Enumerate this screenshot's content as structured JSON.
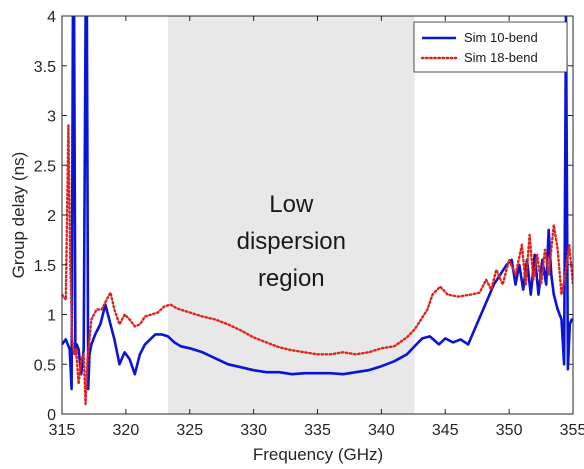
{
  "chart_data": {
    "type": "line",
    "xlabel": "Frequency (GHz)",
    "ylabel": "Group delay (ns)",
    "xlim": [
      315,
      355
    ],
    "ylim": [
      0,
      4
    ],
    "x_ticks": [
      315,
      320,
      325,
      330,
      335,
      340,
      345,
      350,
      355
    ],
    "y_ticks": [
      0,
      0.5,
      1,
      1.5,
      2,
      2.5,
      3,
      3.5,
      4
    ],
    "grid": false,
    "legend_position": "top-right",
    "shaded_region": {
      "x_range": [
        323.3,
        342.6
      ],
      "color": "#e8e8e8",
      "label_lines": [
        "Low",
        "dispersion",
        "region"
      ]
    },
    "series": [
      {
        "name": "Sim 10-bend",
        "color": "#0a14d6",
        "style": "solid",
        "x": [
          315.0,
          315.3,
          315.6,
          315.75,
          315.85,
          315.95,
          316.05,
          316.15,
          316.3,
          316.5,
          316.7,
          316.85,
          316.95,
          317.05,
          317.15,
          317.3,
          317.6,
          318.0,
          318.4,
          318.8,
          319.1,
          319.5,
          319.9,
          320.3,
          320.7,
          321.1,
          321.5,
          321.9,
          322.3,
          322.8,
          323.3,
          323.8,
          324.3,
          325.0,
          326.0,
          327.0,
          328.0,
          329.0,
          330.0,
          331.0,
          332.0,
          333.0,
          334.0,
          335.0,
          336.0,
          337.0,
          338.0,
          339.0,
          340.0,
          341.0,
          342.0,
          342.6,
          343.2,
          343.8,
          344.5,
          345.0,
          345.6,
          346.2,
          346.8,
          347.3,
          347.8,
          348.3,
          348.8,
          349.3,
          349.8,
          350.2,
          350.5,
          350.8,
          351.1,
          351.4,
          351.7,
          352.0,
          352.3,
          352.6,
          352.9,
          353.1,
          353.3,
          353.5,
          353.8,
          354.1,
          354.3,
          354.45,
          354.6,
          354.75,
          354.9,
          355.0
        ],
        "values": [
          0.7,
          0.75,
          0.65,
          0.25,
          4.0,
          4.0,
          0.6,
          0.7,
          0.65,
          0.4,
          0.65,
          4.0,
          4.0,
          0.25,
          0.6,
          0.7,
          0.8,
          0.9,
          1.1,
          0.9,
          0.75,
          0.5,
          0.62,
          0.55,
          0.4,
          0.6,
          0.7,
          0.75,
          0.8,
          0.8,
          0.78,
          0.72,
          0.68,
          0.66,
          0.62,
          0.56,
          0.5,
          0.47,
          0.44,
          0.42,
          0.42,
          0.4,
          0.41,
          0.41,
          0.41,
          0.4,
          0.42,
          0.44,
          0.48,
          0.53,
          0.6,
          0.68,
          0.76,
          0.78,
          0.7,
          0.76,
          0.72,
          0.75,
          0.7,
          0.85,
          1.0,
          1.15,
          1.3,
          1.4,
          1.5,
          1.55,
          1.3,
          1.5,
          1.25,
          1.55,
          1.2,
          1.6,
          1.2,
          1.55,
          1.3,
          1.85,
          1.4,
          1.2,
          1.05,
          0.95,
          0.5,
          4.0,
          0.45,
          0.9,
          0.95,
          0.95
        ]
      },
      {
        "name": "Sim 18-bend",
        "color": "#e0241b",
        "style": "dotted",
        "x": [
          315.0,
          315.3,
          315.5,
          315.65,
          315.8,
          315.95,
          316.1,
          316.3,
          316.5,
          316.7,
          316.85,
          317.0,
          317.3,
          317.7,
          318.1,
          318.5,
          318.8,
          319.1,
          319.5,
          319.9,
          320.3,
          320.7,
          321.1,
          321.5,
          322.0,
          322.5,
          323.0,
          323.5,
          324.0,
          325.0,
          326.0,
          327.0,
          328.0,
          329.0,
          330.0,
          331.0,
          332.0,
          333.0,
          334.0,
          335.0,
          336.0,
          337.0,
          338.0,
          339.0,
          340.0,
          341.0,
          342.0,
          342.6,
          343.1,
          343.6,
          344.0,
          344.6,
          345.2,
          346.0,
          347.0,
          347.7,
          348.2,
          348.6,
          349.0,
          349.5,
          350.0,
          350.5,
          351.0,
          351.3,
          351.6,
          351.9,
          352.2,
          352.5,
          352.8,
          353.1,
          353.5,
          353.8,
          354.1,
          354.4,
          354.7,
          355.0
        ],
        "values": [
          1.2,
          1.15,
          2.9,
          1.5,
          0.75,
          0.6,
          0.65,
          0.3,
          0.55,
          0.6,
          0.1,
          0.55,
          0.95,
          1.05,
          1.05,
          1.15,
          1.22,
          1.05,
          0.9,
          1.0,
          0.95,
          0.88,
          0.9,
          0.98,
          1.0,
          1.02,
          1.08,
          1.1,
          1.06,
          1.02,
          0.98,
          0.95,
          0.9,
          0.84,
          0.77,
          0.72,
          0.67,
          0.64,
          0.62,
          0.6,
          0.6,
          0.62,
          0.6,
          0.62,
          0.66,
          0.68,
          0.77,
          0.85,
          0.95,
          1.05,
          1.2,
          1.28,
          1.2,
          1.18,
          1.2,
          1.22,
          1.35,
          1.25,
          1.45,
          1.3,
          1.55,
          1.4,
          1.7,
          1.3,
          1.8,
          1.35,
          1.6,
          1.3,
          1.65,
          1.4,
          1.9,
          1.65,
          1.2,
          1.4,
          1.7,
          1.3
        ]
      }
    ]
  }
}
